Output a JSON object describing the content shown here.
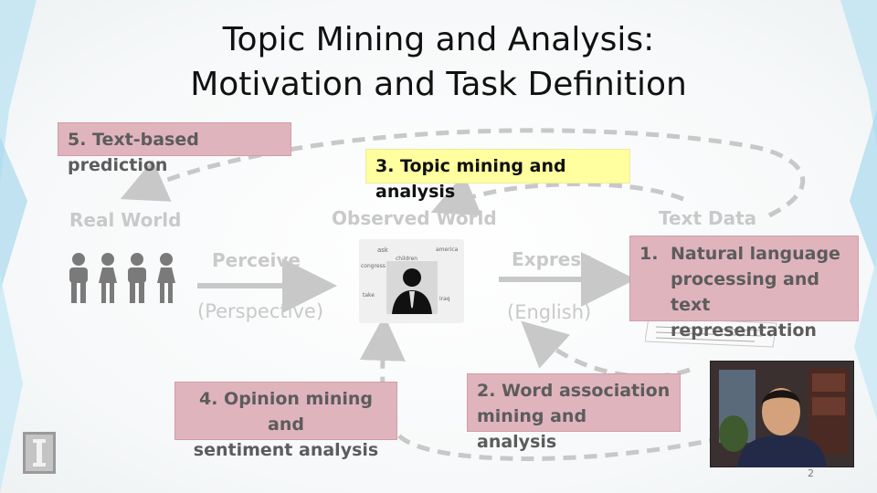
{
  "slide": {
    "title_line1": "Topic Mining and Analysis:",
    "title_line2": "Motivation and Task Definition",
    "page_number": "2"
  },
  "labels": {
    "real_world": "Real World",
    "observed_world": "Observed World",
    "text_data": "Text Data",
    "perceive": "Perceive",
    "perspective": "(Perspective)",
    "express": "Express",
    "english": "(English)"
  },
  "boxes": {
    "box5": "5. Text-based prediction",
    "box3": "3. Topic mining and analysis",
    "box1_num": "1.",
    "box1_lines": [
      "Natural language",
      "processing and text",
      "representation"
    ],
    "box4_lines": [
      "4. Opinion mining and",
      "sentiment analysis"
    ],
    "box2_lines": [
      "2. Word association",
      "mining and analysis"
    ]
  },
  "word_cloud": {
    "words": [
      "ask",
      "children",
      "america",
      "congress",
      "take",
      "iraq"
    ]
  },
  "icons": {
    "people": "people-icon",
    "person": "businessman-silhouette-icon",
    "logo": "university-logo-icon"
  },
  "colors": {
    "box_pink": "#e0b4bd",
    "box_yellow": "#ffffa0",
    "gray_text": "#c9c9c9",
    "arrow": "#c8c8c8",
    "people": "#7a7a7a"
  }
}
